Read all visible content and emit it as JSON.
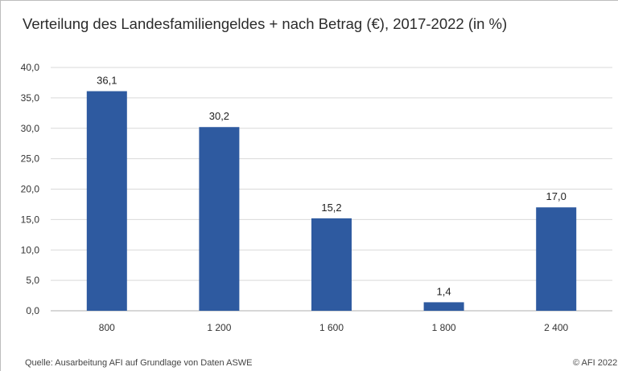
{
  "title": "Verteilung des Landesfamiliengeldes + nach Betrag (€), 2017-2022 (in %)",
  "source": "Quelle: Ausarbeitung AFI auf Grundlage von Daten ASWE",
  "copyright": "© AFI 2022",
  "colors": {
    "bar": "#2e5aa0",
    "grid": "#d9d9d9",
    "axis": "#bfbfbf"
  },
  "chart_data": {
    "type": "bar",
    "title": "Verteilung des Landesfamiliengeldes + nach Betrag (€), 2017-2022 (in %)",
    "categories": [
      "800",
      "1 200",
      "1 600",
      "1 800",
      "2 400"
    ],
    "values": [
      36.1,
      30.2,
      15.2,
      1.4,
      17.0
    ],
    "value_labels": [
      "36,1",
      "30,2",
      "15,2",
      "1,4",
      "17,0"
    ],
    "ylim": [
      0,
      40
    ],
    "yticks": [
      0,
      5,
      10,
      15,
      20,
      25,
      30,
      35,
      40
    ],
    "ytick_labels": [
      "0,0",
      "5,0",
      "10,0",
      "15,0",
      "20,0",
      "25,0",
      "30,0",
      "35,0",
      "40,0"
    ],
    "grid": true,
    "legend": false
  }
}
